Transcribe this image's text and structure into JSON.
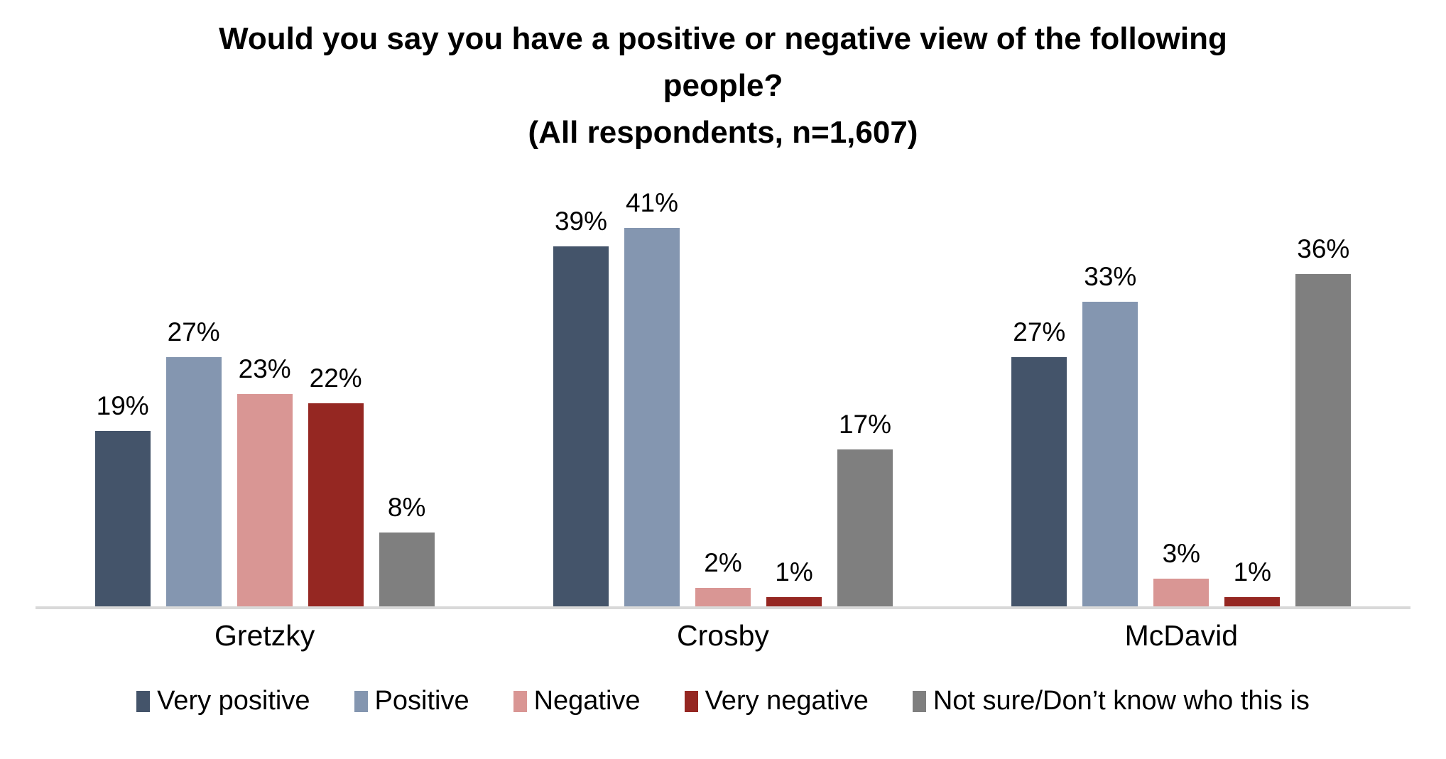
{
  "chart_data": {
    "type": "bar",
    "title_lines": [
      "Would you say you have a positive or negative view of the following",
      "people?"
    ],
    "subtitle": "(All respondents, n=1,607)",
    "categories": [
      "Gretzky",
      "Crosby",
      "McDavid"
    ],
    "series": [
      {
        "name": "Very positive",
        "color": "#44546A",
        "values": [
          19,
          39,
          27
        ]
      },
      {
        "name": "Positive",
        "color": "#8496B0",
        "values": [
          27,
          41,
          33
        ]
      },
      {
        "name": "Negative",
        "color": "#D99694",
        "values": [
          23,
          2,
          3
        ]
      },
      {
        "name": "Very negative",
        "color": "#952722",
        "values": [
          22,
          1,
          1
        ]
      },
      {
        "name": "Not sure/Don’t know who this is",
        "color": "#7F7F7F",
        "values": [
          8,
          17,
          36
        ]
      }
    ],
    "value_suffix": "%",
    "ylim": [
      0,
      45
    ],
    "grid": false,
    "y_axis_visible": false,
    "data_labels": "outside-end",
    "legend_position": "bottom",
    "axis_line_color": "#D9D9D9",
    "text_color": "#000000"
  }
}
